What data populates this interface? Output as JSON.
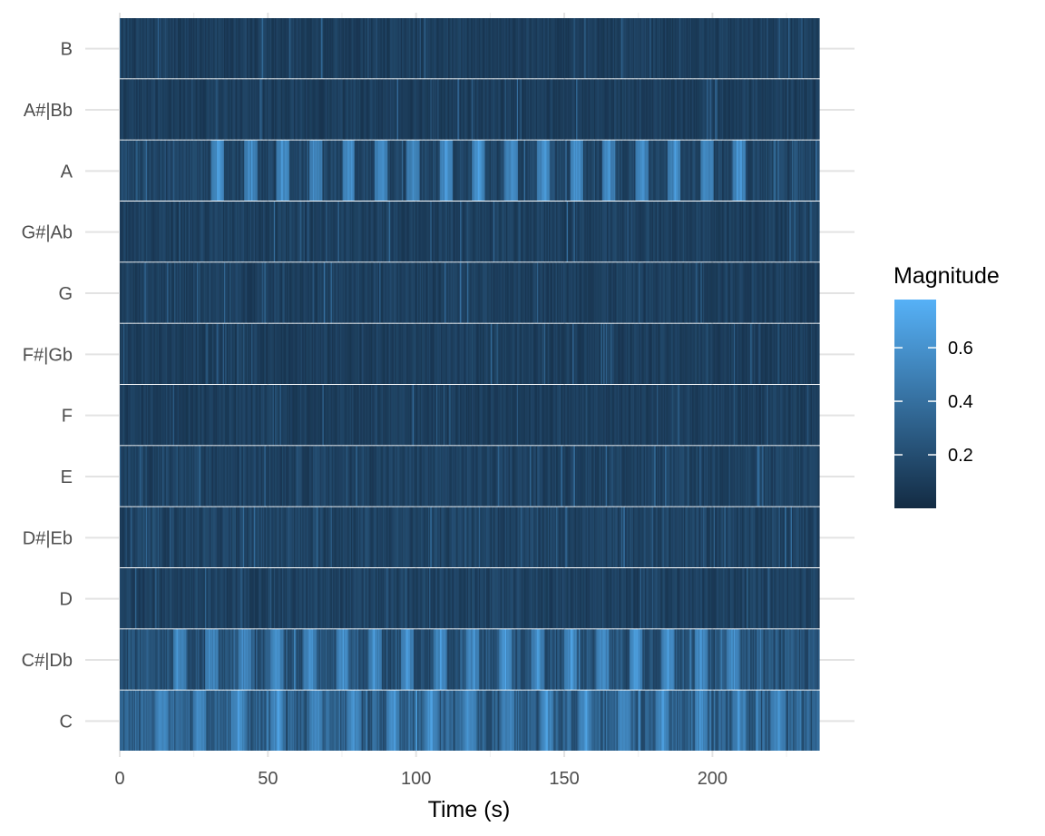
{
  "chart_data": {
    "type": "heatmap",
    "title": "",
    "xlabel": "Time (s)",
    "ylabel": "",
    "xlim": [
      0,
      236
    ],
    "x_ticks": [
      0,
      50,
      100,
      150,
      200
    ],
    "y_categories": [
      "C",
      "C#|Db",
      "D",
      "D#|Eb",
      "E",
      "F",
      "F#|Gb",
      "G",
      "G#|Ab",
      "A",
      "A#|Bb",
      "B"
    ],
    "grid": true,
    "legend": {
      "title": "Magnitude",
      "position": "right",
      "ticks": [
        0.2,
        0.4,
        0.6
      ],
      "range": [
        0.0,
        0.78
      ],
      "color_low": "#132B43",
      "color_high": "#56B1F7"
    },
    "mean_magnitude_by_pitch": {
      "C": 0.3,
      "C#|Db": 0.22,
      "D": 0.13,
      "D#|Eb": 0.14,
      "E": 0.13,
      "F": 0.11,
      "F#|Gb": 0.11,
      "G": 0.12,
      "G#|Ab": 0.12,
      "A": 0.15,
      "A#|Bb": 0.11,
      "B": 0.11
    },
    "peak_times_s": {
      "A": [
        33,
        44,
        55,
        66,
        77,
        88,
        99,
        110,
        121,
        132,
        143,
        154,
        165,
        176,
        187,
        198,
        209
      ],
      "C#|Db": [
        20,
        31,
        42,
        53,
        64,
        75,
        86,
        97,
        108,
        119,
        130,
        141,
        152,
        163,
        174,
        185,
        196,
        207
      ],
      "C": [
        14,
        27,
        40,
        53,
        66,
        79,
        92,
        105,
        118,
        131,
        144,
        157,
        170,
        183,
        196,
        209,
        222
      ]
    }
  }
}
